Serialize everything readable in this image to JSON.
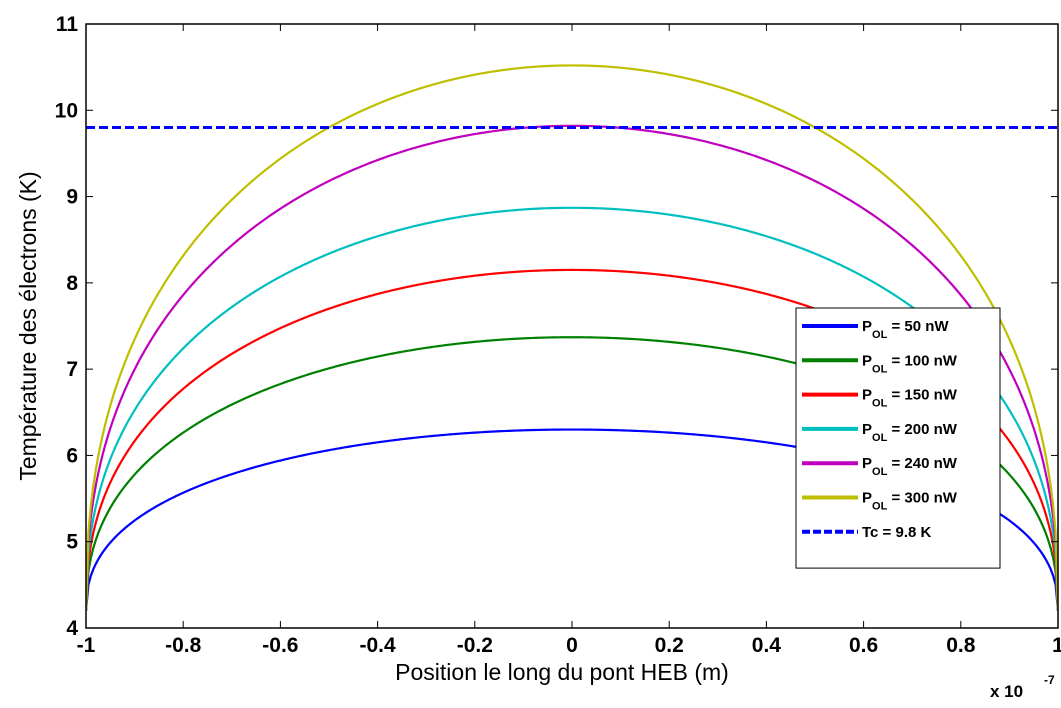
{
  "chart_data": {
    "type": "line",
    "title": "",
    "xlabel": "Position le long du pont HEB (m)",
    "ylabel": "Température des électrons (K)",
    "x_multiplier_label": "x 10",
    "x_multiplier_exponent": "-7",
    "xlim": [
      -1,
      1
    ],
    "ylim": [
      4,
      11
    ],
    "x_ticks": [
      -1,
      -0.8,
      -0.6,
      -0.4,
      -0.2,
      0,
      0.2,
      0.4,
      0.6,
      0.8,
      1
    ],
    "x_tick_labels": [
      "-1",
      "-0.8",
      "-0.6",
      "-0.4",
      "-0.2",
      "0",
      "0.2",
      "0.4",
      "0.6",
      "0.8",
      "1"
    ],
    "y_ticks": [
      4,
      5,
      6,
      7,
      8,
      9,
      10,
      11
    ],
    "y_tick_labels": [
      "4",
      "5",
      "6",
      "7",
      "8",
      "9",
      "10",
      "11"
    ],
    "grid": false,
    "legend_position": "bottom-right",
    "boundary_temperature": 4.2,
    "series": [
      {
        "legend_main": "P",
        "legend_sub": "OL",
        "legend_rest": " = 50 nW",
        "color": "#0000ff",
        "peak": 6.3,
        "dashed": false
      },
      {
        "legend_main": "P",
        "legend_sub": "OL",
        "legend_rest": " = 100 nW",
        "color": "#008000",
        "peak": 7.37,
        "dashed": false
      },
      {
        "legend_main": "P",
        "legend_sub": "OL",
        "legend_rest": " = 150 nW",
        "color": "#ff0000",
        "peak": 8.15,
        "dashed": false
      },
      {
        "legend_main": "P",
        "legend_sub": "OL",
        "legend_rest": " = 200 nW",
        "color": "#00bfbf",
        "peak": 8.87,
        "dashed": false
      },
      {
        "legend_main": "P",
        "legend_sub": "OL",
        "legend_rest": " = 240 nW",
        "color": "#bf00bf",
        "peak": 9.82,
        "dashed": false
      },
      {
        "legend_main": "P",
        "legend_sub": "OL",
        "legend_rest": " = 300 nW",
        "color": "#bfbf00",
        "peak": 10.52,
        "dashed": false
      },
      {
        "legend_main": "Tc = 9.8 K",
        "legend_sub": "",
        "legend_rest": "",
        "color": "#0000ff",
        "constant": 9.8,
        "dashed": true
      }
    ]
  }
}
